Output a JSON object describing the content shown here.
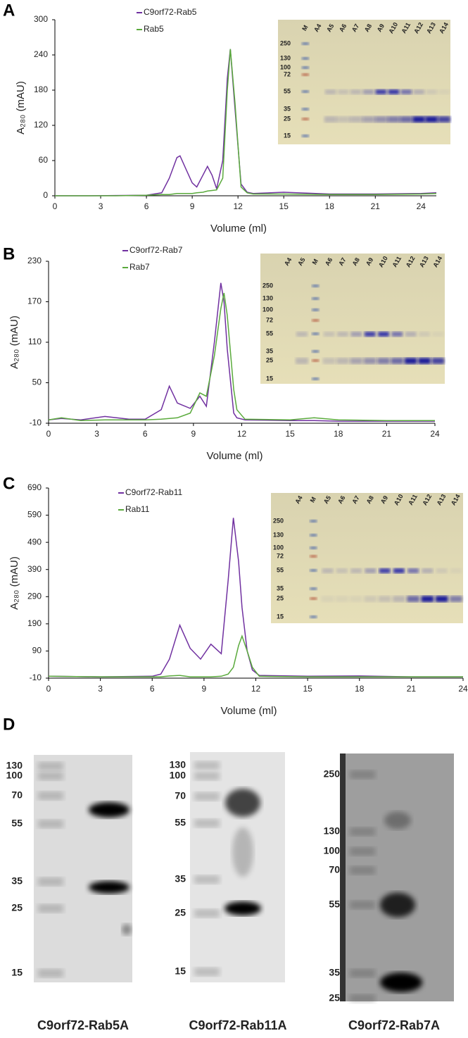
{
  "chart_data": [
    {
      "type": "line",
      "panel": "A",
      "x_label": "Volume (ml)",
      "y_label": "A₂₈₀ (mAU)",
      "xlim": [
        0,
        25
      ],
      "ylim": [
        0,
        300
      ],
      "xticks": [
        0,
        3,
        6,
        9,
        12,
        15,
        18,
        21,
        24
      ],
      "yticks": [
        0,
        60,
        120,
        180,
        240,
        300
      ],
      "x": [
        0,
        2,
        4,
        6,
        7,
        7.5,
        8,
        8.2,
        8.6,
        9,
        9.3,
        9.7,
        10,
        10.3,
        10.6,
        11,
        11.3,
        11.5,
        11.8,
        12.2,
        12.6,
        13,
        15,
        18,
        21,
        24,
        25
      ],
      "series": [
        {
          "name": "C9orf72-Rab5",
          "color": "#7030a0",
          "values": [
            0,
            0,
            0.5,
            1,
            5,
            30,
            65,
            68,
            45,
            22,
            15,
            35,
            50,
            35,
            12,
            60,
            200,
            250,
            150,
            20,
            6,
            4,
            6,
            3,
            3,
            4,
            5
          ]
        },
        {
          "name": "Rab5",
          "color": "#5aaa3c",
          "values": [
            0,
            0,
            0,
            1,
            2,
            2,
            4,
            4,
            4,
            4,
            5,
            6,
            8,
            9,
            10,
            30,
            180,
            250,
            160,
            15,
            5,
            3,
            3,
            2,
            2,
            3,
            4
          ]
        }
      ],
      "gel": {
        "lanes": [
          "M",
          "A4",
          "A5",
          "A6",
          "A7",
          "A8",
          "A9",
          "A10",
          "A11",
          "A12",
          "A13",
          "A14"
        ],
        "markers": [
          "250",
          "130",
          "100",
          "72",
          "55",
          "35",
          "25",
          "15"
        ]
      }
    },
    {
      "type": "line",
      "panel": "B",
      "x_label": "Volume (ml)",
      "y_label": "A₂₈₀ (mAU)",
      "xlim": [
        0,
        24
      ],
      "ylim": [
        -10,
        230
      ],
      "xticks": [
        0,
        3,
        6,
        9,
        12,
        15,
        18,
        21,
        24
      ],
      "yticks": [
        -10,
        50,
        110,
        170,
        230
      ],
      "x": [
        0,
        0.8,
        2,
        3.5,
        5,
        6,
        7,
        7.5,
        8,
        8.8,
        9.4,
        9.8,
        10.3,
        10.7,
        10.9,
        11.1,
        11.5,
        11.7,
        12.2,
        15,
        16.5,
        18,
        21,
        24
      ],
      "series": [
        {
          "name": "C9orf72-Rab7",
          "color": "#7030a0",
          "values": [
            -5,
            -3,
            -5,
            0,
            -4,
            -4,
            10,
            45,
            20,
            12,
            30,
            15,
            110,
            198,
            170,
            100,
            5,
            -2,
            -5,
            -6,
            -6,
            -7,
            -7,
            -7
          ]
        },
        {
          "name": "Rab7",
          "color": "#5aaa3c",
          "values": [
            -5,
            -2,
            -6,
            -5,
            -5,
            -5,
            -4,
            -3,
            -2,
            5,
            35,
            30,
            90,
            160,
            183,
            150,
            40,
            10,
            -4,
            -5,
            -2,
            -5,
            -6,
            -6
          ]
        }
      ],
      "gel": {
        "lanes": [
          "A4",
          "A5",
          "M",
          "A6",
          "A7",
          "A8",
          "A9",
          "A10",
          "A11",
          "A12",
          "A13",
          "A14"
        ],
        "markers": [
          "250",
          "130",
          "100",
          "72",
          "55",
          "35",
          "25",
          "15"
        ]
      }
    },
    {
      "type": "line",
      "panel": "C",
      "x_label": "Volume (ml)",
      "y_label": "A₂₈₀ (mAU)",
      "xlim": [
        0,
        24
      ],
      "ylim": [
        -10,
        690
      ],
      "xticks": [
        0,
        3,
        6,
        9,
        12,
        15,
        18,
        21,
        24
      ],
      "yticks": [
        -10,
        90,
        190,
        290,
        390,
        490,
        590,
        690
      ],
      "x": [
        0,
        3,
        6,
        6.5,
        7,
        7.6,
        8.2,
        8.8,
        9.4,
        10,
        10.4,
        10.7,
        11,
        11.2,
        11.5,
        11.8,
        12.2,
        15,
        18,
        21,
        24
      ],
      "series": [
        {
          "name": "C9orf72-Rab11",
          "color": "#7030a0",
          "values": [
            -3,
            -5,
            -3,
            5,
            60,
            185,
            100,
            60,
            115,
            80,
            350,
            580,
            420,
            250,
            90,
            20,
            0,
            -3,
            -2,
            -5,
            -5
          ]
        },
        {
          "name": "Rab11",
          "color": "#5aaa3c",
          "values": [
            -3,
            -5,
            -5,
            -5,
            -2,
            0,
            -5,
            -5,
            -5,
            -3,
            5,
            30,
            110,
            145,
            90,
            30,
            -3,
            -5,
            -5,
            -5,
            -5
          ]
        }
      ],
      "gel": {
        "lanes": [
          "A4",
          "M",
          "A5",
          "A6",
          "A7",
          "A8",
          "A9",
          "A10",
          "A11",
          "A12",
          "A13",
          "A14"
        ],
        "markers": [
          "250",
          "130",
          "100",
          "72",
          "55",
          "35",
          "25",
          "15"
        ]
      }
    }
  ],
  "blots": {
    "panel": "D",
    "items": [
      {
        "caption": "C9orf72-Rab5A",
        "markers": [
          "130",
          "100",
          "70",
          "55",
          "35",
          "25",
          "15"
        ]
      },
      {
        "caption": "C9orf72-Rab11A",
        "markers": [
          "130",
          "100",
          "70",
          "55",
          "35",
          "25",
          "15"
        ]
      },
      {
        "caption": "C9orf72-Rab7A",
        "markers": [
          "250",
          "130",
          "100",
          "70",
          "55",
          "35",
          "25"
        ]
      }
    ]
  }
}
